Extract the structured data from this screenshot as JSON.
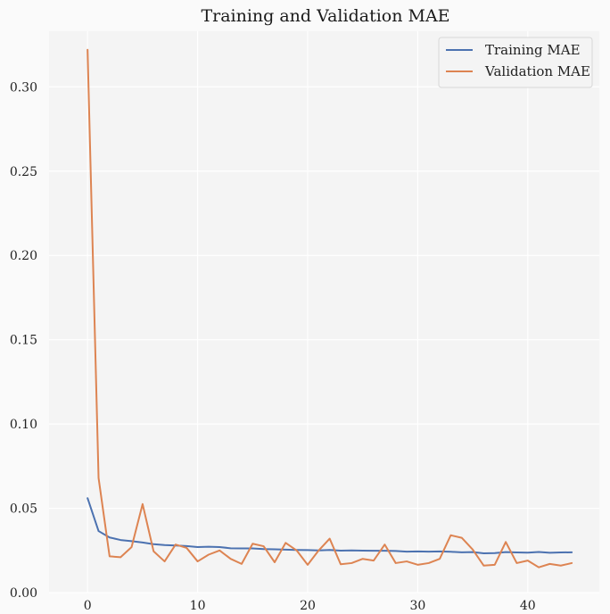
{
  "chart_data": {
    "type": "line",
    "title": "Training and Validation MAE",
    "xlabel": "",
    "ylabel": "",
    "xlim": [
      -3.5,
      46.5
    ],
    "ylim": [
      0.0,
      0.333
    ],
    "xticks": [
      0,
      10,
      20,
      30,
      40
    ],
    "yticks": [
      0.0,
      0.05,
      0.1,
      0.15,
      0.2,
      0.25,
      0.3
    ],
    "ytick_labels": [
      "0.00",
      "0.05",
      "0.10",
      "0.15",
      "0.20",
      "0.25",
      "0.30"
    ],
    "grid": true,
    "legend_position": "top-right",
    "x": [
      0,
      1,
      2,
      3,
      4,
      5,
      6,
      7,
      8,
      9,
      10,
      11,
      12,
      13,
      14,
      15,
      16,
      17,
      18,
      19,
      20,
      21,
      22,
      23,
      24,
      25,
      26,
      27,
      28,
      29,
      30,
      31,
      32,
      33,
      34,
      35,
      36,
      37,
      38,
      39,
      40,
      41,
      42,
      43,
      44
    ],
    "series": [
      {
        "name": "Training MAE",
        "color": "#4c72b0",
        "values": [
          0.056,
          0.0365,
          0.0327,
          0.0312,
          0.0305,
          0.0297,
          0.0287,
          0.0282,
          0.0279,
          0.0276,
          0.027,
          0.0272,
          0.027,
          0.0263,
          0.0262,
          0.0262,
          0.0258,
          0.0257,
          0.0255,
          0.0253,
          0.0252,
          0.025,
          0.0253,
          0.0249,
          0.025,
          0.0249,
          0.0248,
          0.0248,
          0.0247,
          0.0243,
          0.0244,
          0.0243,
          0.0244,
          0.0242,
          0.0239,
          0.024,
          0.0233,
          0.0234,
          0.024,
          0.0238,
          0.0237,
          0.0241,
          0.0236,
          0.0238,
          0.0239
        ]
      },
      {
        "name": "Validation MAE",
        "color": "#dd8452",
        "values": [
          0.322,
          0.068,
          0.0215,
          0.021,
          0.027,
          0.0525,
          0.0245,
          0.0185,
          0.0285,
          0.0265,
          0.0185,
          0.0225,
          0.025,
          0.02,
          0.017,
          0.029,
          0.0275,
          0.018,
          0.0295,
          0.025,
          0.0165,
          0.025,
          0.032,
          0.0168,
          0.0175,
          0.02,
          0.019,
          0.0285,
          0.0175,
          0.0185,
          0.0165,
          0.0175,
          0.02,
          0.034,
          0.0325,
          0.0255,
          0.016,
          0.0165,
          0.03,
          0.0175,
          0.019,
          0.015,
          0.017,
          0.016,
          0.0175
        ]
      }
    ]
  }
}
